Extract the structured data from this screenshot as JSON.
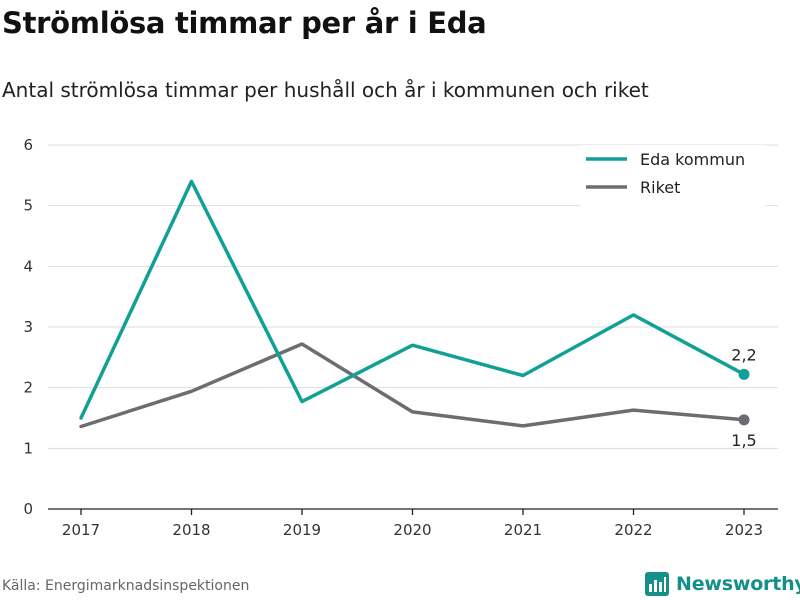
{
  "header": {
    "title": "Strömlösa timmar per år i Eda",
    "subtitle": "Antal strömlösa timmar per hushåll och år i kommunen och riket"
  },
  "footer": {
    "source": "Källa: Energimarknadsinspektionen",
    "brand": "Newsworthy"
  },
  "colors": {
    "eda": "#12a096",
    "riket": "#6d6c72",
    "grid": "#dddddd",
    "brand": "#14908a"
  },
  "chart_data": {
    "type": "line",
    "x": [
      "2017",
      "2018",
      "2019",
      "2020",
      "2021",
      "2022",
      "2023"
    ],
    "series": [
      {
        "name": "Eda kommun",
        "values": [
          1.5,
          5.4,
          1.77,
          2.7,
          2.2,
          3.2,
          2.22
        ],
        "end_label": "2,2"
      },
      {
        "name": "Riket",
        "values": [
          1.36,
          1.94,
          2.72,
          1.6,
          1.37,
          1.63,
          1.47
        ],
        "end_label": "1,5"
      }
    ],
    "ylim": [
      0,
      6
    ],
    "yticks": [
      "0",
      "1",
      "2",
      "3",
      "4",
      "5",
      "6"
    ],
    "xlabel": "",
    "ylabel": "",
    "grid": true,
    "legend_position": "top-right"
  }
}
